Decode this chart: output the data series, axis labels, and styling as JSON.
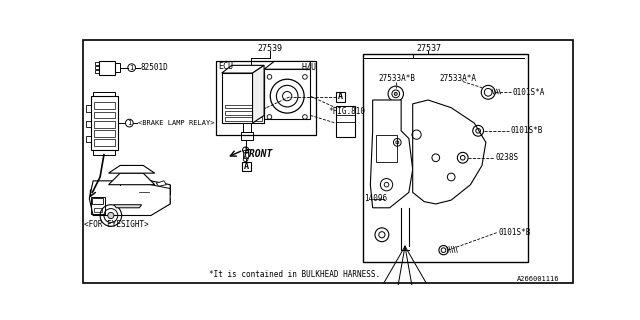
{
  "background_color": "#ffffff",
  "diagram_id": "A266001116",
  "labels": {
    "part_27539": "27539",
    "part_27537": "27537",
    "part_27533AB": "27533A*B",
    "part_27533AA": "27533A*A",
    "part_14096": "14096",
    "part_0101SA": "0101S*A",
    "part_0101SB1": "0101S*B",
    "part_0101SB2": "0101S*B",
    "part_0238S": "0238S",
    "part_82501D": "82501D",
    "hcu_label": "H/U",
    "ecu_label": "ECU",
    "fig_label": "*FIG.810",
    "front_label": "FRONT",
    "brake_relay": "<BRAKE LAMP RELAY>",
    "eyesight": "<FOR EYESIGHT>",
    "note": "*It is contained in BULKHEAD HARNESS.",
    "callout_A": "A"
  }
}
